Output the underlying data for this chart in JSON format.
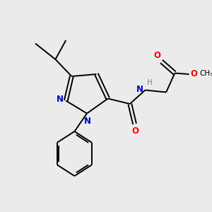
{
  "bg_color": "#ebebeb",
  "bond_color": "#000000",
  "N_color": "#0000cc",
  "O_color": "#ff0000",
  "H_color": "#4a9a9a",
  "text_color": "#000000",
  "lw": 1.4,
  "fs": 8.5,
  "xlim": [
    0,
    10
  ],
  "ylim": [
    0,
    10
  ]
}
